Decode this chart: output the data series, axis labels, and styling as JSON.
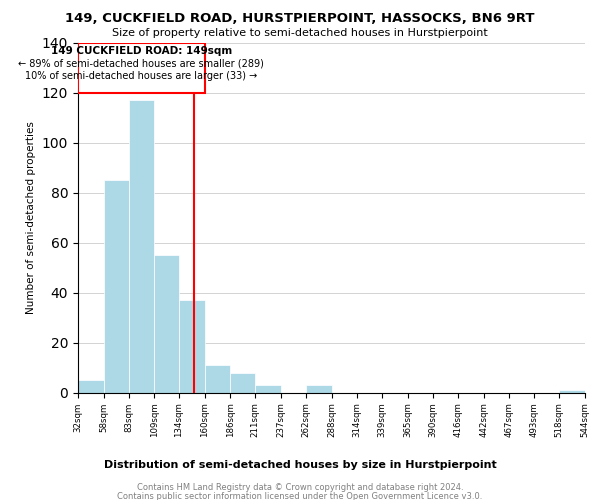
{
  "title": "149, CUCKFIELD ROAD, HURSTPIERPOINT, HASSOCKS, BN6 9RT",
  "subtitle": "Size of property relative to semi-detached houses in Hurstpierpoint",
  "xlabel": "Distribution of semi-detached houses by size in Hurstpierpoint",
  "ylabel": "Number of semi-detached properties",
  "bin_edges": [
    32,
    58,
    83,
    109,
    134,
    160,
    186,
    211,
    237,
    262,
    288,
    314,
    339,
    365,
    390,
    416,
    442,
    467,
    493,
    518,
    544
  ],
  "bar_heights": [
    5,
    85,
    117,
    55,
    37,
    11,
    8,
    3,
    0,
    3,
    0,
    0,
    0,
    0,
    0,
    0,
    0,
    0,
    0,
    1
  ],
  "bar_color": "#add8e6",
  "property_line_x": 149,
  "ylim": [
    0,
    140
  ],
  "yticks": [
    0,
    20,
    40,
    60,
    80,
    100,
    120,
    140
  ],
  "annotation_title": "149 CUCKFIELD ROAD: 149sqm",
  "annotation_line1": "← 89% of semi-detached houses are smaller (289)",
  "annotation_line2": "10% of semi-detached houses are larger (33) →",
  "footer_line1": "Contains HM Land Registry data © Crown copyright and database right 2024.",
  "footer_line2": "Contains public sector information licensed under the Open Government Licence v3.0.",
  "tick_labels": [
    "32sqm",
    "58sqm",
    "83sqm",
    "109sqm",
    "134sqm",
    "160sqm",
    "186sqm",
    "211sqm",
    "237sqm",
    "262sqm",
    "288sqm",
    "314sqm",
    "339sqm",
    "365sqm",
    "390sqm",
    "416sqm",
    "442sqm",
    "467sqm",
    "493sqm",
    "518sqm",
    "544sqm"
  ]
}
